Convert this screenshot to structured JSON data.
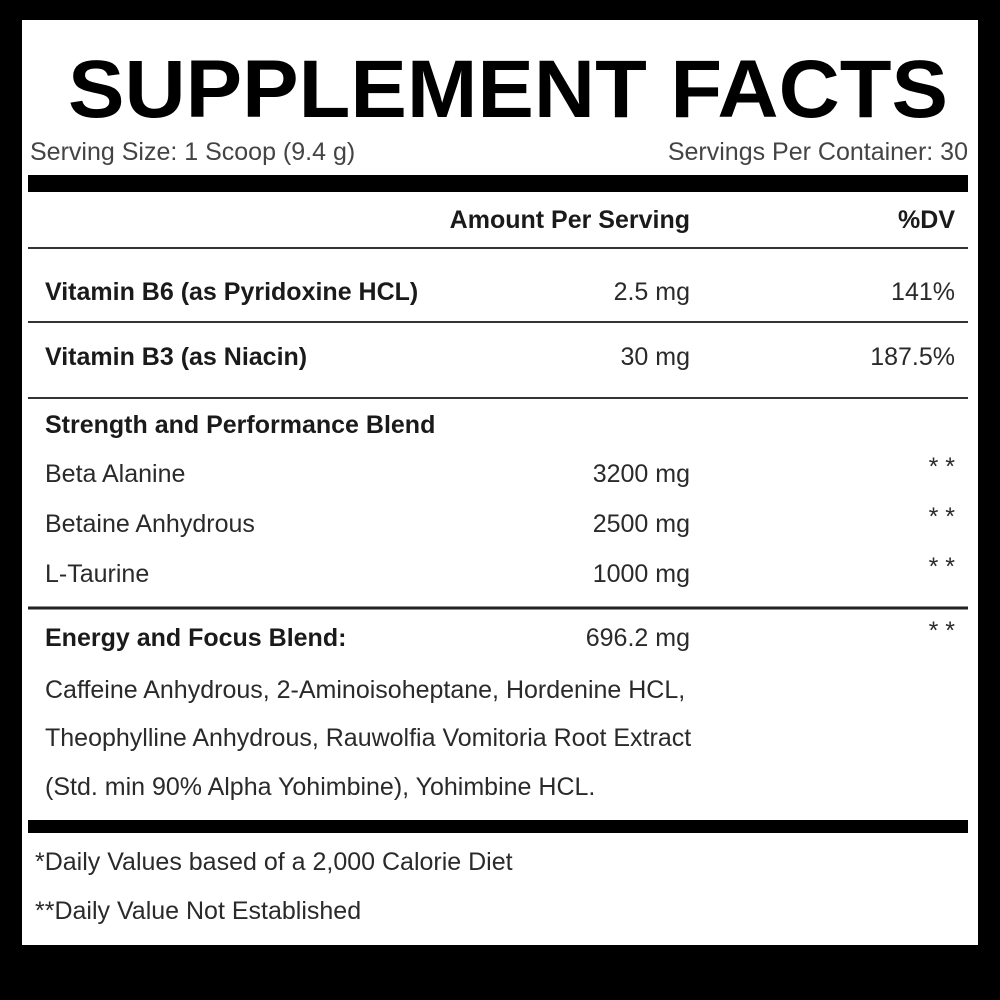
{
  "header": {
    "title": "SUPPLEMENT FACTS",
    "serving_size": "Serving Size: 1 Scoop (9.4 g)",
    "servings_per_container": "Servings Per Container: 30"
  },
  "table": {
    "columns": [
      "Amount Per Serving",
      "%DV"
    ],
    "vitamins": [
      {
        "name": "Vitamin B6 (as Pyridoxine HCL)",
        "amount": "2.5 mg",
        "dv": "141%"
      },
      {
        "name": "Vitamin B3 (as Niacin)",
        "amount": "30 mg",
        "dv": "187.5%"
      }
    ],
    "strength_blend": {
      "title": "Strength and Performance Blend",
      "items": [
        {
          "name": "Beta Alanine",
          "amount": "3200 mg",
          "dv": "* *"
        },
        {
          "name": "Betaine Anhydrous",
          "amount": "2500 mg",
          "dv": "* *"
        },
        {
          "name": "L-Taurine",
          "amount": "1000 mg",
          "dv": "* *"
        }
      ]
    },
    "energy_blend": {
      "title": "Energy and Focus Blend:",
      "amount": "696.2 mg",
      "dv": "* *",
      "ingredients": [
        "Caffeine Anhydrous, 2-Aminoisoheptane, Hordenine HCL,",
        "Theophylline Anhydrous, Rauwolfia Vomitoria Root Extract",
        "(Std. min 90% Alpha Yohimbine), Yohimbine HCL."
      ]
    }
  },
  "footnotes": [
    "*Daily Values based of a 2,000 Calorie Diet",
    "**Daily Value Not Established"
  ]
}
